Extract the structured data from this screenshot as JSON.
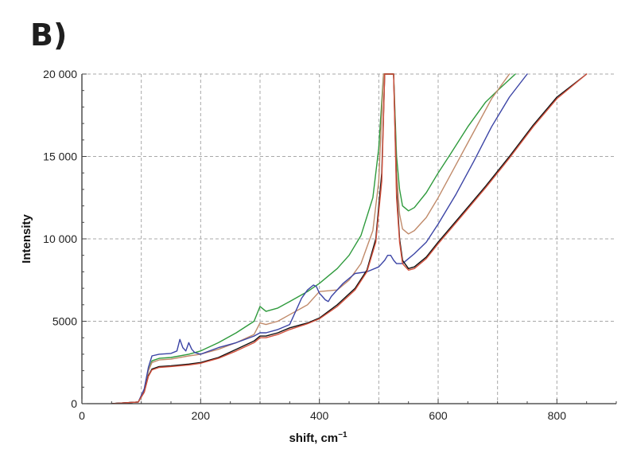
{
  "panel_label": "B)",
  "chart_data": {
    "type": "line",
    "title": "",
    "xlabel": "shift, cm",
    "xlabel_superscript": "−1",
    "ylabel": "Intensity",
    "xlim": [
      0,
      900
    ],
    "ylim": [
      0,
      20000
    ],
    "xticks": [
      0,
      200,
      400,
      600,
      800
    ],
    "xtick_labels": [
      "0",
      "200",
      "400",
      "600",
      "800"
    ],
    "yticks": [
      0,
      5000,
      10000,
      15000,
      20000
    ],
    "ytick_labels": [
      "0",
      "5000",
      "10 000",
      "15 000",
      "20 000"
    ],
    "x_minor_gridlines": [
      100,
      300,
      500,
      700
    ],
    "grid": true,
    "series": [
      {
        "color": "#2e9a3c",
        "x": [
          50,
          95,
          105,
          112,
          118,
          130,
          150,
          180,
          200,
          230,
          260,
          290,
          300,
          310,
          330,
          350,
          380,
          400,
          430,
          450,
          470,
          490,
          500,
          508,
          512,
          518,
          525,
          530,
          535,
          540,
          550,
          560,
          580,
          600,
          620,
          650,
          680,
          700,
          730
        ],
        "y": [
          0,
          100,
          800,
          2000,
          2600,
          2750,
          2800,
          3000,
          3200,
          3700,
          4300,
          5000,
          5900,
          5600,
          5800,
          6200,
          6800,
          7300,
          8200,
          9000,
          10200,
          12500,
          15500,
          20000,
          20000,
          20000,
          20000,
          15000,
          13000,
          12000,
          11700,
          11900,
          12800,
          14000,
          15100,
          16800,
          18300,
          19000,
          20000
        ]
      },
      {
        "color": "#c08a6a",
        "x": [
          50,
          95,
          105,
          112,
          118,
          130,
          150,
          180,
          200,
          230,
          260,
          290,
          300,
          310,
          330,
          350,
          380,
          400,
          430,
          450,
          470,
          490,
          500,
          508,
          512,
          518,
          525,
          530,
          535,
          540,
          550,
          560,
          580,
          600,
          630,
          660,
          690,
          720
        ],
        "y": [
          0,
          100,
          800,
          2000,
          2500,
          2650,
          2700,
          2900,
          3000,
          3300,
          3700,
          4200,
          4900,
          4800,
          5000,
          5400,
          6000,
          6800,
          6900,
          7500,
          8500,
          10500,
          13500,
          20000,
          20000,
          20000,
          20000,
          14000,
          11500,
          10600,
          10300,
          10500,
          11300,
          12500,
          14500,
          16500,
          18500,
          20000
        ]
      },
      {
        "color": "#3b44a5",
        "x": [
          50,
          95,
          105,
          112,
          118,
          130,
          150,
          160,
          165,
          170,
          175,
          180,
          185,
          190,
          200,
          230,
          260,
          290,
          300,
          310,
          330,
          350,
          360,
          370,
          380,
          390,
          395,
          400,
          405,
          410,
          415,
          420,
          440,
          460,
          480,
          500,
          510,
          515,
          520,
          525,
          530,
          540,
          550,
          560,
          580,
          600,
          630,
          660,
          690,
          720,
          750
        ],
        "y": [
          0,
          100,
          900,
          2200,
          2900,
          3000,
          3050,
          3200,
          3900,
          3400,
          3200,
          3700,
          3300,
          3100,
          3000,
          3400,
          3700,
          4100,
          4300,
          4300,
          4500,
          4800,
          5600,
          6400,
          6900,
          7200,
          7100,
          6700,
          6500,
          6300,
          6200,
          6500,
          7300,
          7900,
          8000,
          8300,
          8700,
          9000,
          9000,
          8700,
          8500,
          8500,
          8800,
          9100,
          9800,
          10900,
          12700,
          14700,
          16800,
          18600,
          20000
        ]
      },
      {
        "color": "#111111",
        "x": [
          50,
          95,
          105,
          112,
          118,
          130,
          150,
          180,
          200,
          230,
          260,
          290,
          300,
          310,
          330,
          350,
          380,
          400,
          430,
          460,
          480,
          495,
          505,
          510,
          515,
          520,
          525,
          530,
          535,
          540,
          550,
          560,
          580,
          600,
          640,
          680,
          720,
          760,
          800,
          850
        ],
        "y": [
          0,
          100,
          700,
          1700,
          2100,
          2250,
          2300,
          2400,
          2500,
          2800,
          3300,
          3800,
          4100,
          4100,
          4300,
          4600,
          4900,
          5200,
          6000,
          7000,
          8100,
          10000,
          14000,
          20000,
          20000,
          20000,
          20000,
          13000,
          10000,
          8700,
          8200,
          8300,
          8900,
          9800,
          11500,
          13200,
          15000,
          16900,
          18600,
          20000
        ]
      },
      {
        "color": "#d2503c",
        "x": [
          50,
          95,
          105,
          112,
          118,
          130,
          150,
          180,
          200,
          230,
          260,
          290,
          300,
          310,
          330,
          350,
          380,
          400,
          430,
          460,
          480,
          495,
          505,
          510,
          515,
          520,
          525,
          530,
          535,
          540,
          550,
          560,
          580,
          600,
          640,
          680,
          720,
          760,
          800,
          850
        ],
        "y": [
          0,
          100,
          700,
          1650,
          2050,
          2200,
          2250,
          2350,
          2450,
          2750,
          3200,
          3700,
          4000,
          4000,
          4200,
          4500,
          4850,
          5150,
          5900,
          6900,
          8000,
          9800,
          13500,
          20000,
          20000,
          20000,
          20000,
          12500,
          9800,
          8500,
          8100,
          8200,
          8800,
          9700,
          11400,
          13100,
          14900,
          16800,
          18500,
          20000
        ]
      }
    ]
  }
}
